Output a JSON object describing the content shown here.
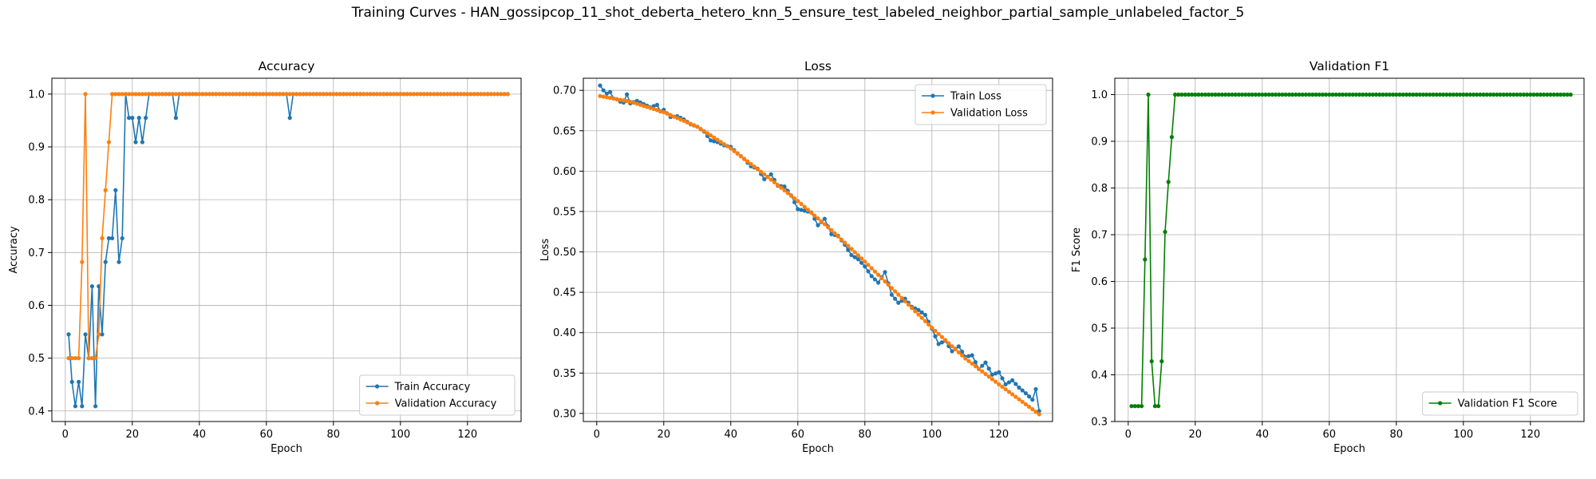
{
  "suptitle": "Training Curves - HAN_gossipcop_11_shot_deberta_hetero_knn_5_ensure_test_labeled_neighbor_partial_sample_unlabeled_factor_5",
  "chart_data": [
    {
      "type": "line",
      "title": "Accuracy",
      "xlabel": "Epoch",
      "ylabel": "Accuracy",
      "xlim": [
        -4,
        136
      ],
      "ylim": [
        0.38,
        1.03
      ],
      "xticks": [
        0,
        20,
        40,
        60,
        80,
        100,
        120
      ],
      "yticks": [
        0.4,
        0.5,
        0.6,
        0.7,
        0.8,
        0.9,
        1.0
      ],
      "ytick_format": 1,
      "grid": true,
      "legend_position": "lower-right",
      "series": [
        {
          "name": "Train Accuracy",
          "color": "#1f77b4",
          "x": [
            1,
            2,
            3,
            4,
            5,
            6,
            7,
            8,
            9,
            10,
            11,
            12,
            13,
            14,
            15,
            16,
            17,
            18,
            19,
            20,
            21,
            22,
            23,
            24,
            25,
            26,
            27,
            28,
            29,
            30,
            31,
            32,
            33,
            34,
            35,
            66,
            67,
            68,
            132
          ],
          "y": [
            0.545,
            0.455,
            0.409,
            0.455,
            0.409,
            0.545,
            0.5,
            0.636,
            0.409,
            0.636,
            0.545,
            0.682,
            0.727,
            0.727,
            0.818,
            0.682,
            0.727,
            1.0,
            0.955,
            0.955,
            0.909,
            0.955,
            0.909,
            0.955,
            1.0,
            1.0,
            1.0,
            1.0,
            1.0,
            1.0,
            1.0,
            1.0,
            0.955,
            1.0,
            1.0,
            1.0,
            0.955,
            1.0,
            1.0
          ]
        },
        {
          "name": "Validation Accuracy",
          "color": "#ff7f0e",
          "x": [
            1,
            2,
            3,
            4,
            5,
            6,
            7,
            8,
            9,
            10,
            11,
            12,
            13,
            14,
            15,
            132
          ],
          "y": [
            0.5,
            0.5,
            0.5,
            0.5,
            0.682,
            1.0,
            0.5,
            0.5,
            0.5,
            0.545,
            0.727,
            0.818,
            0.909,
            1.0,
            1.0,
            1.0
          ]
        }
      ]
    },
    {
      "type": "line",
      "title": "Loss",
      "xlabel": "Epoch",
      "ylabel": "Loss",
      "xlim": [
        -4,
        136
      ],
      "ylim": [
        0.29,
        0.715
      ],
      "xticks": [
        0,
        20,
        40,
        60,
        80,
        100,
        120
      ],
      "yticks": [
        0.3,
        0.35,
        0.4,
        0.45,
        0.5,
        0.55,
        0.6,
        0.65,
        0.7
      ],
      "ytick_format": 2,
      "grid": true,
      "legend_position": "upper-right",
      "series": [
        {
          "name": "Train Loss",
          "color": "#1f77b4",
          "x": [
            1,
            2,
            3,
            4,
            5,
            6,
            7,
            8,
            9,
            10,
            12,
            14,
            16,
            18,
            19,
            20,
            22,
            24,
            26,
            28,
            30,
            32,
            34,
            36,
            38,
            40,
            42,
            44,
            46,
            48,
            50,
            52,
            54,
            56,
            58,
            60,
            62,
            64,
            66,
            68,
            70,
            72,
            74,
            76,
            78,
            80,
            82,
            84,
            86,
            88,
            90,
            92,
            94,
            96,
            98,
            100,
            102,
            104,
            106,
            108,
            110,
            112,
            114,
            116,
            118,
            120,
            122,
            124,
            126,
            128,
            130,
            131,
            132
          ],
          "y": [
            0.706,
            0.7,
            0.696,
            0.698,
            0.69,
            0.689,
            0.686,
            0.685,
            0.695,
            0.684,
            0.687,
            0.683,
            0.679,
            0.682,
            0.674,
            0.676,
            0.667,
            0.668,
            0.664,
            0.658,
            0.655,
            0.649,
            0.638,
            0.636,
            0.632,
            0.63,
            0.622,
            0.615,
            0.606,
            0.603,
            0.59,
            0.596,
            0.582,
            0.581,
            0.57,
            0.553,
            0.551,
            0.549,
            0.533,
            0.541,
            0.522,
            0.52,
            0.509,
            0.496,
            0.491,
            0.482,
            0.47,
            0.462,
            0.475,
            0.447,
            0.437,
            0.442,
            0.432,
            0.428,
            0.422,
            0.405,
            0.386,
            0.39,
            0.377,
            0.383,
            0.37,
            0.372,
            0.355,
            0.363,
            0.348,
            0.351,
            0.336,
            0.341,
            0.332,
            0.325,
            0.317,
            0.33,
            0.303
          ]
        },
        {
          "name": "Validation Loss",
          "color": "#ff7f0e",
          "x": [
            1,
            10,
            20,
            30,
            40,
            50,
            60,
            70,
            80,
            90,
            100,
            110,
            120,
            132
          ],
          "y": [
            0.693,
            0.686,
            0.673,
            0.655,
            0.628,
            0.596,
            0.563,
            0.527,
            0.488,
            0.447,
            0.406,
            0.368,
            0.336,
            0.299
          ]
        }
      ]
    },
    {
      "type": "line",
      "title": "Validation F1",
      "xlabel": "Epoch",
      "ylabel": "F1 Score",
      "xlim": [
        -4,
        136
      ],
      "ylim": [
        0.3,
        1.035
      ],
      "xticks": [
        0,
        20,
        40,
        60,
        80,
        100,
        120
      ],
      "yticks": [
        0.3,
        0.4,
        0.5,
        0.6,
        0.7,
        0.8,
        0.9,
        1.0
      ],
      "ytick_format": 1,
      "grid": true,
      "legend_position": "lower-right",
      "series": [
        {
          "name": "Validation F1 Score",
          "color": "#008000",
          "x": [
            1,
            2,
            3,
            4,
            5,
            6,
            7,
            8,
            9,
            10,
            11,
            12,
            13,
            14,
            132
          ],
          "y": [
            0.333,
            0.333,
            0.333,
            0.333,
            0.647,
            1.0,
            0.429,
            0.333,
            0.333,
            0.429,
            0.706,
            0.813,
            0.909,
            1.0,
            1.0
          ]
        }
      ]
    }
  ]
}
